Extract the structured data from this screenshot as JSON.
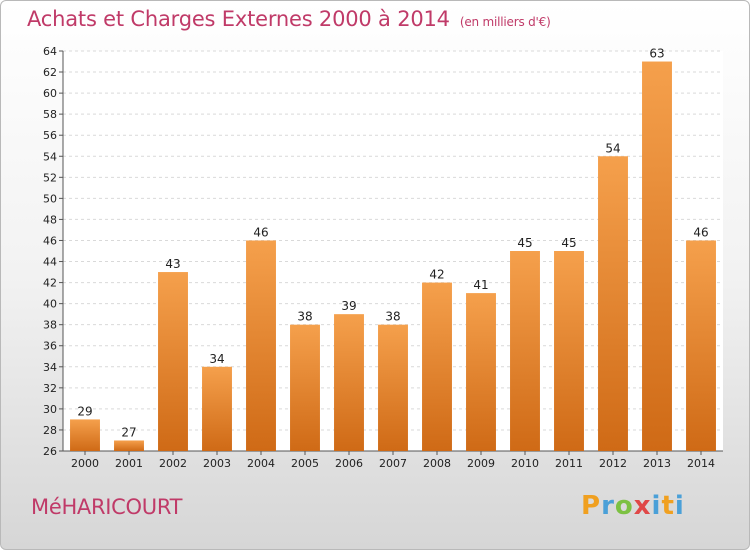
{
  "chart_data": {
    "type": "bar",
    "title": "Achats et Charges Externes 2000 à 2014",
    "subtitle": "(en milliers d'€)",
    "categories": [
      "2000",
      "2001",
      "2002",
      "2003",
      "2004",
      "2005",
      "2006",
      "2007",
      "2008",
      "2009",
      "2010",
      "2011",
      "2012",
      "2013",
      "2014"
    ],
    "values": [
      29,
      27,
      43,
      34,
      46,
      38,
      39,
      38,
      42,
      41,
      45,
      45,
      54,
      63,
      46
    ],
    "ylim": [
      26,
      64
    ],
    "yticks": [
      26,
      28,
      30,
      32,
      34,
      36,
      38,
      40,
      42,
      44,
      46,
      48,
      50,
      52,
      54,
      56,
      58,
      60,
      62,
      64
    ],
    "grid": true,
    "bar_color_top": "#f5a04c",
    "bar_color_bottom": "#cf6a16"
  },
  "commune": "MéHARICOURT",
  "brand": {
    "p": "P",
    "r": "r",
    "o": "o",
    "x": "x",
    "i": "i",
    "t": "t",
    "i2": "i"
  }
}
